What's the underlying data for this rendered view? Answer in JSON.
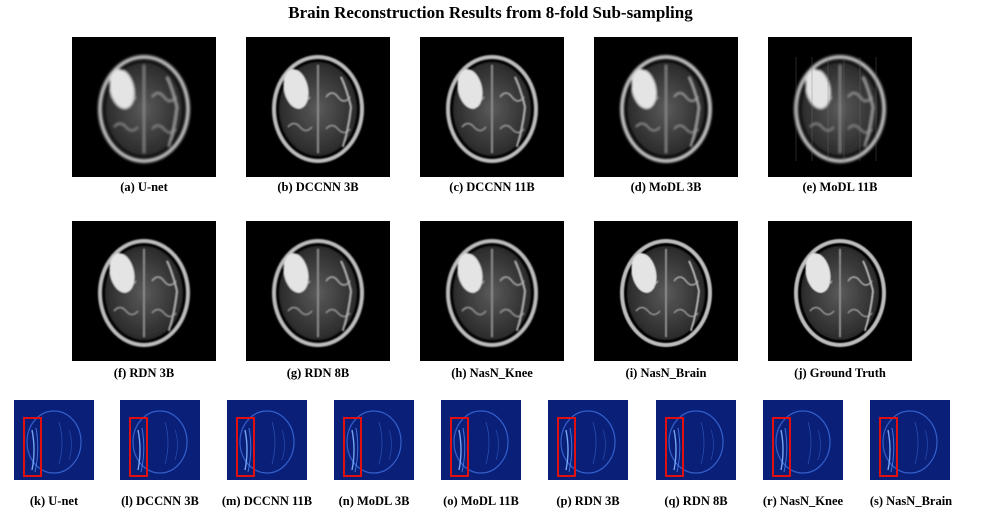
{
  "title": "Brain Reconstruction Results from 8-fold Sub-sampling",
  "row1": [
    {
      "label": "(a) U-net"
    },
    {
      "label": "(b) DCCNN 3B"
    },
    {
      "label": "(c) DCCNN 11B"
    },
    {
      "label": "(d) MoDL 3B"
    },
    {
      "label": "(e) MoDL 11B"
    }
  ],
  "row2": [
    {
      "label": "(f) RDN 3B"
    },
    {
      "label": "(g) RDN 8B"
    },
    {
      "label": "(h) NasN_Knee"
    },
    {
      "label": "(i) NasN_Brain"
    },
    {
      "label": "(j) Ground Truth"
    }
  ],
  "row3": [
    {
      "label": "(k) U-net"
    },
    {
      "label": "(l) DCCNN 3B"
    },
    {
      "label": "(m) DCCNN 11B"
    },
    {
      "label": "(n) MoDL 3B"
    },
    {
      "label": "(o) MoDL 11B"
    },
    {
      "label": "(p) RDN 3B"
    },
    {
      "label": "(q) RDN 8B"
    },
    {
      "label": "(r) NasN_Knee"
    },
    {
      "label": "(s) NasN_Brain"
    }
  ],
  "colors": {
    "error_map_bg": "#0a1f78",
    "highlight_box": "#e01010"
  }
}
